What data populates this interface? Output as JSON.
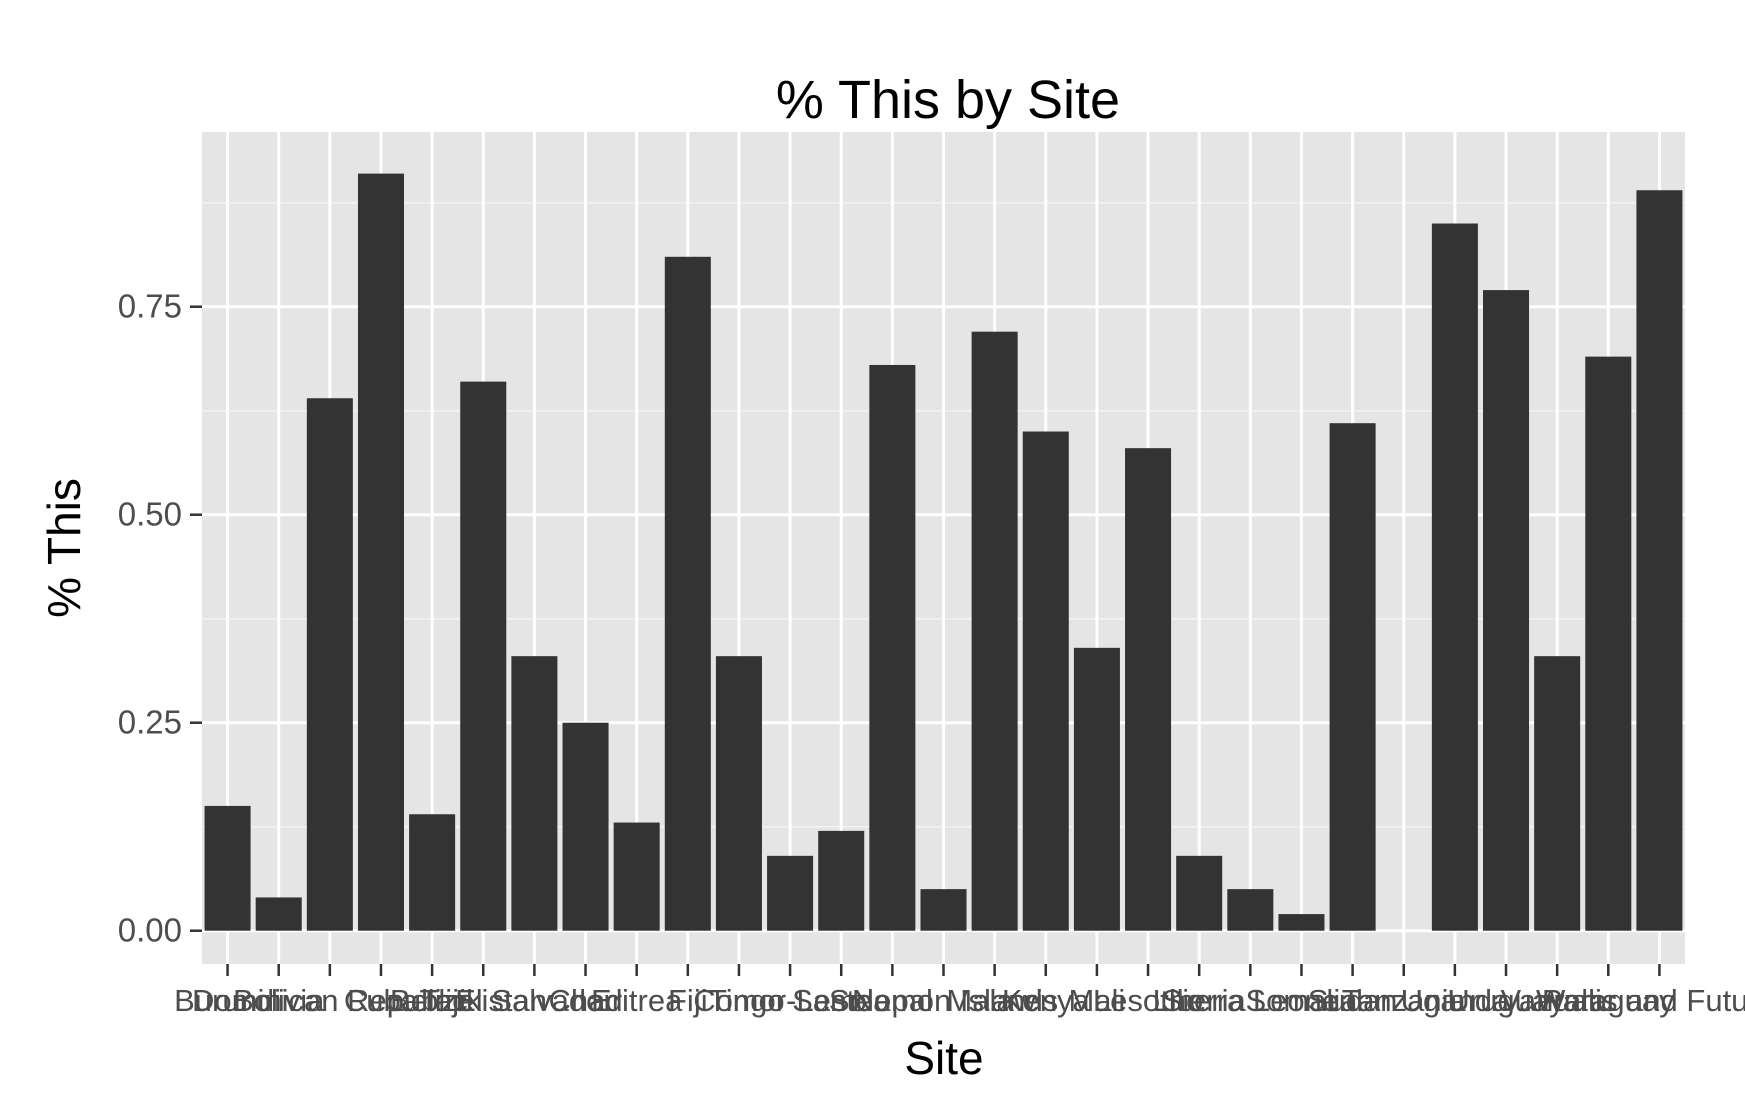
{
  "chart_data": {
    "type": "bar",
    "title": "% This by Site",
    "xlabel": "Site",
    "ylabel": "% This",
    "ylim": [
      -0.04,
      0.96
    ],
    "y_ticks": [
      0.0,
      0.25,
      0.5,
      0.75
    ],
    "y_tick_labels": [
      "0.00",
      "0.25",
      "0.50",
      "0.75"
    ],
    "grid": true,
    "legend": "none",
    "categories": [
      "",
      "",
      "",
      "",
      "",
      "",
      "",
      "",
      "",
      "",
      "",
      "",
      "",
      "",
      "",
      "",
      "",
      "",
      "",
      "",
      "",
      "",
      "",
      "",
      "",
      "",
      "",
      "",
      ""
    ],
    "values": [
      0.15,
      0.04,
      0.64,
      0.91,
      0.14,
      0.66,
      0.33,
      0.25,
      0.13,
      0.81,
      0.33,
      0.09,
      0.12,
      0.68,
      0.05,
      0.72,
      0.6,
      0.34,
      0.58,
      0.09,
      0.05,
      0.02,
      0.61,
      0.0,
      0.85,
      0.77,
      0.33,
      0.69,
      0.89
    ],
    "x_tick_labels_overlapped": [
      "Burundi",
      "Bolivia",
      "Dominican Republic",
      "Cuba",
      "Belize",
      "Tajikistan",
      "El Salvador",
      "Chad",
      "Eritrea",
      "Fiji",
      "Congo",
      "Timor-Leste",
      "Samoa",
      "Nepal",
      "Solomon Islands",
      "Malawi",
      "Kenya",
      "Mali",
      "Lesotho",
      "Liberia",
      "Sierra Leone",
      "Somalia",
      "Sudan",
      "Tanzania",
      "Uganda",
      "Uruguay",
      "Vanuatu",
      "Paraguay",
      "Wallis and Futuna"
    ],
    "bar_color": "#333333",
    "panel_color": "#e5e5e5",
    "grid_color": "#ffffff"
  }
}
